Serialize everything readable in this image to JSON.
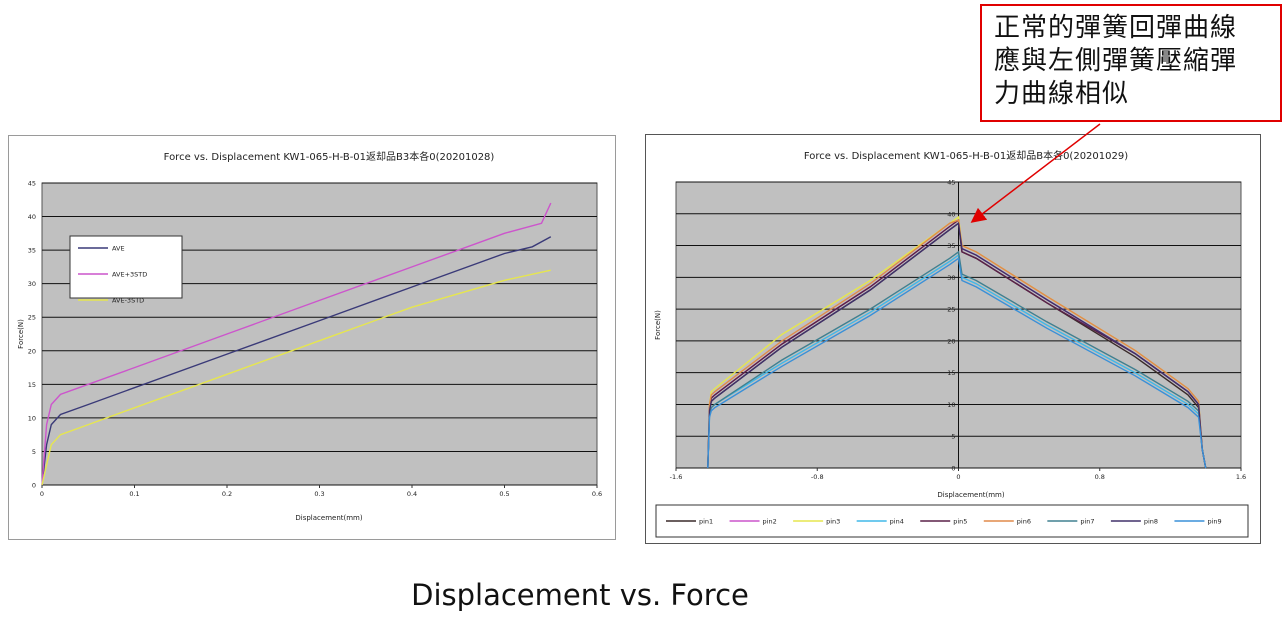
{
  "annotation": {
    "text": "正常的彈簧回彈曲線\n應與左側彈簧壓縮彈\n力曲線相似",
    "color": "#e00000"
  },
  "caption": "Displacement vs. Force",
  "chart_data": [
    {
      "type": "line",
      "title": "Force vs. Displacement KW1-065-H-B-01返却品B3本各0(20201028)",
      "xlabel": "Displacement(mm)",
      "ylabel": "Force(N)",
      "xlim": [
        0,
        0.6
      ],
      "ylim": [
        0,
        45
      ],
      "x_ticks": [
        "0",
        "0.1",
        "0.2",
        "0.3",
        "0.4",
        "0.5",
        "0.6"
      ],
      "y_ticks": [
        "0",
        "5",
        "10",
        "15",
        "20",
        "25",
        "30",
        "35",
        "40",
        "45"
      ],
      "grid": true,
      "plot_background": "#c0c0c0",
      "legend_position": "upper-left",
      "series": [
        {
          "name": "AVE",
          "color": "#3a3a78",
          "x": [
            0,
            0.005,
            0.01,
            0.02,
            0.05,
            0.1,
            0.2,
            0.3,
            0.4,
            0.5,
            0.53,
            0.55
          ],
          "y": [
            0,
            6,
            9,
            10.5,
            12,
            14.5,
            19.5,
            24.5,
            29.5,
            34.5,
            35.5,
            37
          ]
        },
        {
          "name": "AVE+3STD",
          "color": "#cc55cc",
          "x": [
            0,
            0.005,
            0.01,
            0.02,
            0.05,
            0.1,
            0.2,
            0.3,
            0.4,
            0.5,
            0.54,
            0.55
          ],
          "y": [
            0,
            9,
            12,
            13.5,
            15,
            17.5,
            22.5,
            27.5,
            32.5,
            37.5,
            39,
            42
          ]
        },
        {
          "name": "AVE-3STD",
          "color": "#e6e64e",
          "x": [
            0,
            0.005,
            0.01,
            0.02,
            0.05,
            0.1,
            0.2,
            0.3,
            0.4,
            0.5,
            0.55
          ],
          "y": [
            0,
            3,
            6,
            7.5,
            9,
            11.5,
            16.5,
            21.5,
            26.5,
            30.5,
            32
          ]
        }
      ]
    },
    {
      "type": "line",
      "title": "Force vs. Displacement KW1-065-H-B-01返却品B本各0(20201029)",
      "xlabel": "Displacement(mm)",
      "ylabel": "Force(N)",
      "xlim": [
        -1.6,
        1.6
      ],
      "ylim": [
        0,
        45
      ],
      "x_ticks": [
        "-1.6",
        "-0.8",
        "0",
        "0.8",
        "1.6"
      ],
      "y_ticks": [
        "0",
        "5",
        "10",
        "15",
        "20",
        "25",
        "30",
        "35",
        "40",
        "45"
      ],
      "grid": true,
      "plot_background": "#c0c0c0",
      "legend_position": "bottom",
      "series": [
        {
          "name": "pin1",
          "color": "#3a2a2a",
          "x": [
            -1.42,
            -1.41,
            -1.4,
            -1.38,
            -1.0,
            -0.5,
            -0.05,
            0,
            0.02,
            0.1,
            0.5,
            1.0,
            1.3,
            1.36,
            1.38,
            1.4
          ],
          "y": [
            0,
            9,
            10.5,
            11,
            19,
            28,
            37.5,
            38.5,
            34,
            33,
            26,
            17.5,
            11.5,
            9.5,
            3,
            0
          ]
        },
        {
          "name": "pin2",
          "color": "#cc55cc",
          "x": [
            -1.42,
            -1.41,
            -1.4,
            -1.38,
            -1.0,
            -0.5,
            -0.05,
            0,
            0.02,
            0.1,
            0.5,
            1.0,
            1.3,
            1.36,
            1.38,
            1.4
          ],
          "y": [
            0,
            9.5,
            11,
            11.5,
            19.5,
            28.5,
            38,
            39,
            34.5,
            33.5,
            26.5,
            18,
            12,
            10,
            3,
            0
          ]
        },
        {
          "name": "pin3",
          "color": "#e6e64e",
          "x": [
            -1.42,
            -1.41,
            -1.4,
            -1.38,
            -1.0,
            -0.5,
            -0.05,
            0,
            0.02,
            0.1,
            0.5,
            1.0,
            1.3,
            1.36,
            1.38,
            1.4
          ],
          "y": [
            0,
            10,
            12,
            12.5,
            21,
            29.5,
            38.5,
            39.5,
            35,
            34,
            27,
            18.5,
            12.5,
            10.5,
            3,
            0
          ]
        },
        {
          "name": "pin4",
          "color": "#40b8e8",
          "x": [
            -1.42,
            -1.41,
            -1.4,
            -1.38,
            -1.0,
            -0.5,
            -0.05,
            0,
            0.02,
            0.1,
            0.5,
            1.0,
            1.3,
            1.36,
            1.38,
            1.4
          ],
          "y": [
            0,
            8.5,
            9.5,
            10,
            16.5,
            24.5,
            32.5,
            33.5,
            30,
            29,
            22.5,
            15,
            10,
            8.5,
            3,
            0
          ]
        },
        {
          "name": "pin5",
          "color": "#5a2048",
          "x": [
            -1.42,
            -1.41,
            -1.4,
            -1.38,
            -1.0,
            -0.5,
            -0.05,
            0,
            0.02,
            0.1,
            0.5,
            1.0,
            1.3,
            1.36,
            1.38,
            1.4
          ],
          "y": [
            0,
            9.5,
            11,
            11.5,
            19.5,
            28.5,
            38,
            39,
            34,
            33,
            26,
            18,
            12,
            10,
            3,
            0
          ]
        },
        {
          "name": "pin6",
          "color": "#e08a4a",
          "x": [
            -1.42,
            -1.41,
            -1.4,
            -1.38,
            -1.0,
            -0.5,
            -0.05,
            0,
            0.02,
            0.1,
            0.5,
            1.0,
            1.3,
            1.36,
            1.38,
            1.4
          ],
          "y": [
            0,
            10,
            11.5,
            12,
            20,
            29,
            38.5,
            39,
            35,
            34,
            27,
            18.5,
            12.5,
            10.5,
            3,
            0
          ]
        },
        {
          "name": "pin7",
          "color": "#408090",
          "x": [
            -1.42,
            -1.41,
            -1.4,
            -1.38,
            -1.0,
            -0.5,
            -0.05,
            0,
            0.02,
            0.1,
            0.5,
            1.0,
            1.3,
            1.36,
            1.38,
            1.4
          ],
          "y": [
            0,
            8.5,
            9.5,
            10,
            17,
            25,
            33,
            34,
            30.5,
            29.5,
            23,
            15.5,
            10.5,
            9,
            3,
            0
          ]
        },
        {
          "name": "pin8",
          "color": "#40306a",
          "x": [
            -1.42,
            -1.41,
            -1.4,
            -1.38,
            -1.0,
            -0.5,
            -0.05,
            0,
            0.02,
            0.1,
            0.5,
            1.0,
            1.3,
            1.36,
            1.38,
            1.4
          ],
          "y": [
            0,
            9,
            10.5,
            11,
            19,
            28,
            37.5,
            38.5,
            34.5,
            33.5,
            26.5,
            18,
            12,
            10,
            3,
            0
          ]
        },
        {
          "name": "pin9",
          "color": "#3a90d8",
          "x": [
            -1.42,
            -1.41,
            -1.4,
            -1.38,
            -1.0,
            -0.5,
            -0.05,
            0,
            0.02,
            0.1,
            0.5,
            1.0,
            1.3,
            1.36,
            1.38,
            1.4
          ],
          "y": [
            0,
            8,
            9,
            9.5,
            16,
            24,
            32,
            33,
            29.5,
            28.5,
            22,
            14.5,
            9.5,
            8,
            3,
            0
          ]
        }
      ]
    }
  ]
}
